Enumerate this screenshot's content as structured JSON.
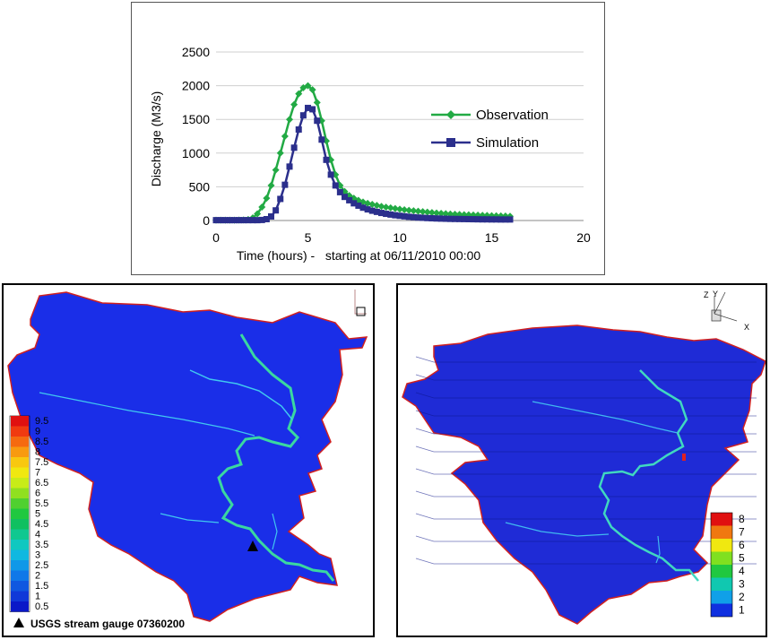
{
  "chart_data": {
    "type": "line",
    "title": "",
    "xlabel": "Time (hours) -   starting at 06/11/2010 00:00",
    "ylabel": "Discharge (M3/s)",
    "xlim": [
      0,
      20
    ],
    "ylim": [
      0,
      2500
    ],
    "xticks": [
      "0",
      "5",
      "10",
      "15",
      "20"
    ],
    "yticks": [
      "0",
      "500",
      "1000",
      "1500",
      "2000",
      "2500"
    ],
    "grid": true,
    "legend_position": "right",
    "series": [
      {
        "name": "Observation",
        "color": "#22aa44",
        "marker": "diamond",
        "x": [
          0,
          0.25,
          0.5,
          0.75,
          1,
          1.25,
          1.5,
          1.75,
          2,
          2.25,
          2.5,
          2.75,
          3,
          3.25,
          3.5,
          3.75,
          4,
          4.25,
          4.5,
          4.75,
          5,
          5.25,
          5.5,
          5.75,
          6,
          6.25,
          6.5,
          6.75,
          7,
          7.25,
          7.5,
          7.75,
          8,
          8.25,
          8.5,
          8.75,
          9,
          9.25,
          9.5,
          9.75,
          10,
          10.25,
          10.5,
          10.75,
          11,
          11.25,
          11.5,
          11.75,
          12,
          12.25,
          12.5,
          12.75,
          13,
          13.25,
          13.5,
          13.75,
          14,
          14.25,
          14.5,
          14.75,
          15,
          15.25,
          15.5,
          15.75,
          16
        ],
        "y": [
          5,
          5,
          5,
          5,
          5,
          6,
          8,
          15,
          40,
          100,
          200,
          330,
          520,
          750,
          1000,
          1250,
          1500,
          1720,
          1880,
          1970,
          2000,
          1940,
          1750,
          1480,
          1180,
          900,
          680,
          520,
          430,
          370,
          330,
          300,
          275,
          255,
          240,
          225,
          210,
          198,
          188,
          178,
          168,
          160,
          152,
          145,
          138,
          131,
          124,
          118,
          112,
          106,
          101,
          97,
          93,
          90,
          87,
          84,
          81,
          79,
          77,
          75,
          72,
          70,
          68,
          66,
          63
        ]
      },
      {
        "name": "Simulation",
        "color": "#2b2f8c",
        "marker": "square",
        "x": [
          0,
          0.25,
          0.5,
          0.75,
          1,
          1.25,
          1.5,
          1.75,
          2,
          2.25,
          2.5,
          2.75,
          3,
          3.25,
          3.5,
          3.75,
          4,
          4.25,
          4.5,
          4.75,
          5,
          5.25,
          5.5,
          5.75,
          6,
          6.25,
          6.5,
          6.75,
          7,
          7.25,
          7.5,
          7.75,
          8,
          8.25,
          8.5,
          8.75,
          9,
          9.25,
          9.5,
          9.75,
          10,
          10.25,
          10.5,
          10.75,
          11,
          11.25,
          11.5,
          11.75,
          12,
          12.25,
          12.5,
          12.75,
          13,
          13.25,
          13.5,
          13.75,
          14,
          14.25,
          14.5,
          14.75,
          15,
          15.25,
          15.5,
          15.75,
          16
        ],
        "y": [
          5,
          5,
          5,
          5,
          5,
          5,
          5,
          5,
          5,
          5,
          8,
          20,
          60,
          150,
          320,
          530,
          800,
          1080,
          1350,
          1560,
          1670,
          1650,
          1480,
          1200,
          900,
          680,
          520,
          420,
          350,
          300,
          255,
          220,
          190,
          165,
          145,
          128,
          112,
          99,
          88,
          78,
          70,
          62,
          55,
          49,
          44,
          40,
          36,
          33,
          30,
          28,
          26,
          24,
          23,
          22,
          21,
          20,
          19,
          18,
          17,
          17,
          16,
          16,
          15,
          15,
          15
        ]
      }
    ]
  },
  "left_map": {
    "legend_ticks": [
      "9.5",
      "9",
      "8.5",
      "8",
      "7.5",
      "7",
      "6.5",
      "6",
      "5.5",
      "5",
      "4.5",
      "4",
      "3.5",
      "3",
      "2.5",
      "2",
      "1.5",
      "1",
      "0.5"
    ],
    "legend_colors": [
      "#e01010",
      "#f03a10",
      "#f56a10",
      "#f89a10",
      "#f8c810",
      "#f0e810",
      "#c8ec18",
      "#90e020",
      "#50d030",
      "#20c840",
      "#10c060",
      "#10c890",
      "#10c8c0",
      "#10b8e0",
      "#1098e8",
      "#1078e8",
      "#1058e0",
      "#1038d8",
      "#0a18c8"
    ],
    "gauge_label": "USGS stream gauge 07360200",
    "fill_color": "#1a2ee8",
    "outline_color": "#d02020"
  },
  "right_map": {
    "legend_ticks": [
      "8",
      "7",
      "6",
      "5",
      "4",
      "3",
      "2",
      "1"
    ],
    "legend_colors": [
      "#e01010",
      "#f07810",
      "#f0e810",
      "#80e020",
      "#20c840",
      "#10c8b0",
      "#10a0e8",
      "#1030e0"
    ],
    "axis_labels": [
      "Z",
      "Y",
      "X"
    ],
    "fill_color": "#1f2bd6",
    "outline_color": "#d02020"
  }
}
